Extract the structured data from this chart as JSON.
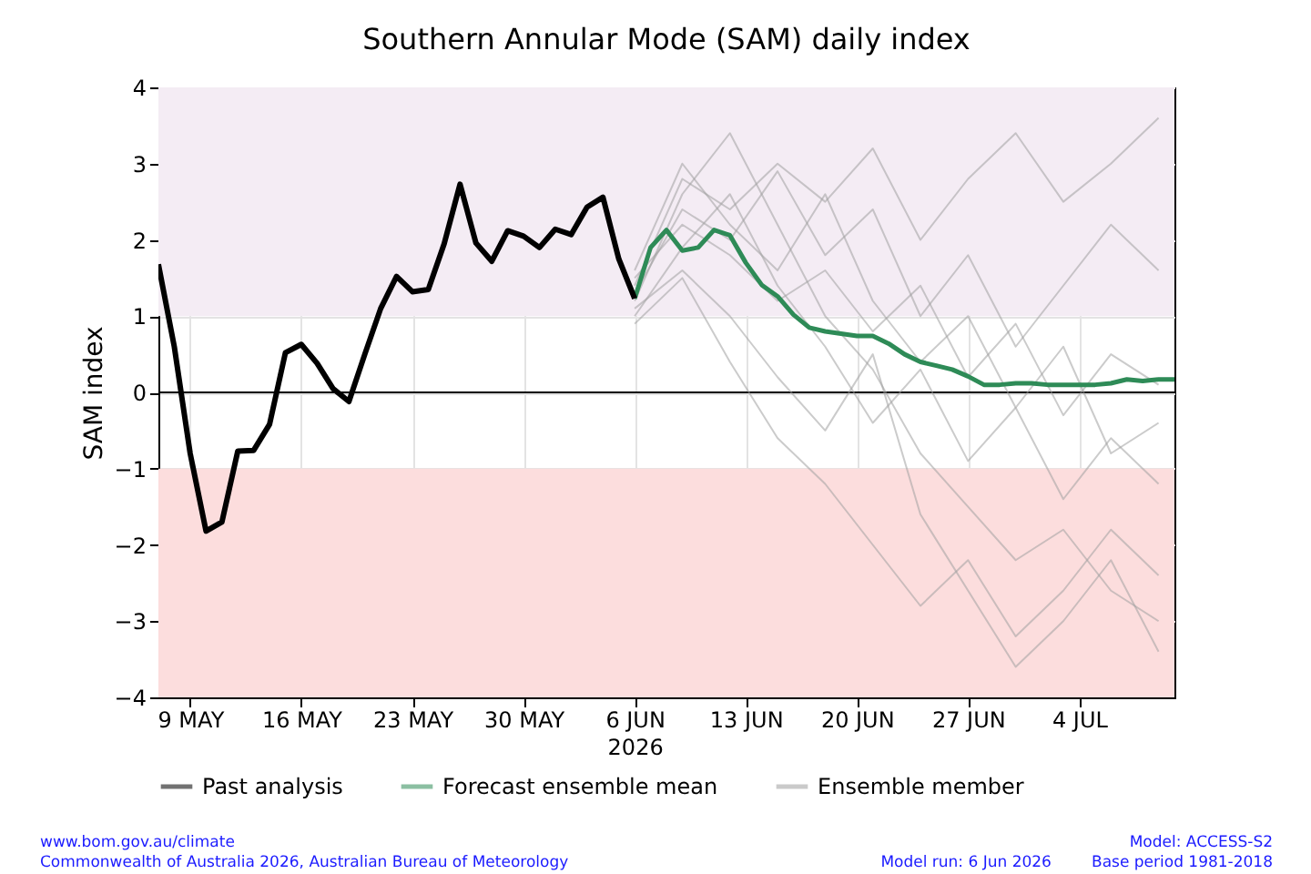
{
  "chart_data": {
    "type": "line",
    "title": "Southern Annular Mode (SAM) daily index",
    "ylabel": "SAM index",
    "xlabel": "2026",
    "xlim": [
      "2026-05-07",
      "2026-07-10"
    ],
    "ylim": [
      -4,
      4
    ],
    "yticks": [
      {
        "value": -4,
        "label": "−4"
      },
      {
        "value": -3,
        "label": "−3"
      },
      {
        "value": -2,
        "label": "−2"
      },
      {
        "value": -1,
        "label": "−1"
      },
      0,
      1,
      2,
      3,
      4
    ],
    "xticks": [
      {
        "value": "2026-05-09",
        "label": "9 MAY"
      },
      {
        "value": "2026-05-16",
        "label": "16 MAY"
      },
      {
        "value": "2026-05-23",
        "label": "23 MAY"
      },
      {
        "value": "2026-05-30",
        "label": "30 MAY"
      },
      {
        "value": "2026-06-06",
        "label": "6 JUN"
      },
      {
        "value": "2026-06-13",
        "label": "13 JUN"
      },
      {
        "value": "2026-06-20",
        "label": "20 JUN"
      },
      {
        "value": "2026-06-27",
        "label": "27 JUN"
      },
      {
        "value": "2026-07-04",
        "label": "4 JUL"
      }
    ],
    "grid": true,
    "legend": "bottom",
    "bands": [
      {
        "axis": "y",
        "from": 1,
        "to": 4,
        "color": "#f4ecf4"
      },
      {
        "axis": "y",
        "from": -4,
        "to": -1,
        "color": "#fcdddd"
      }
    ],
    "ref_lines": [
      {
        "axis": "y",
        "value": 0,
        "color": "#000000"
      }
    ],
    "series": [
      {
        "name": "Ensemble member",
        "color": "#a0a0a0",
        "x": [
          "2026-06-06",
          "2026-06-09",
          "2026-06-12",
          "2026-06-15",
          "2026-06-18",
          "2026-06-21",
          "2026-06-24",
          "2026-06-27",
          "2026-06-30",
          "2026-07-03",
          "2026-07-06",
          "2026-07-09"
        ],
        "values": [
          1.2,
          2.6,
          3.4,
          2.2,
          1.0,
          0.3,
          -0.8,
          -1.5,
          -2.2,
          -1.8,
          -2.6,
          -3.0
        ]
      },
      {
        "color": "#a0a0a0",
        "x": [
          "2026-06-06",
          "2026-06-09",
          "2026-06-12",
          "2026-06-15",
          "2026-06-18",
          "2026-06-21",
          "2026-06-24",
          "2026-06-27",
          "2026-06-30",
          "2026-07-03",
          "2026-07-06",
          "2026-07-09"
        ],
        "values": [
          1.4,
          2.8,
          2.4,
          3.0,
          2.5,
          3.2,
          2.0,
          2.8,
          3.4,
          2.5,
          3.0,
          3.6
        ]
      },
      {
        "color": "#a0a0a0",
        "x": [
          "2026-06-06",
          "2026-06-09",
          "2026-06-12",
          "2026-06-15",
          "2026-06-18",
          "2026-06-21",
          "2026-06-24",
          "2026-06-27",
          "2026-06-30",
          "2026-07-03",
          "2026-07-06",
          "2026-07-09"
        ],
        "values": [
          0.9,
          1.5,
          0.4,
          -0.6,
          -1.2,
          -2.0,
          -2.8,
          -2.2,
          -3.2,
          -2.6,
          -1.8,
          -2.4
        ]
      },
      {
        "color": "#a0a0a0",
        "x": [
          "2026-06-06",
          "2026-06-09",
          "2026-06-12",
          "2026-06-15",
          "2026-06-18",
          "2026-06-21",
          "2026-06-24",
          "2026-06-27",
          "2026-06-30",
          "2026-07-03",
          "2026-07-06",
          "2026-07-09"
        ],
        "values": [
          1.5,
          2.2,
          1.8,
          1.2,
          1.6,
          0.8,
          1.4,
          0.2,
          0.9,
          -0.3,
          0.5,
          0.1
        ]
      },
      {
        "color": "#a0a0a0",
        "x": [
          "2026-06-06",
          "2026-06-09",
          "2026-06-12",
          "2026-06-15",
          "2026-06-18",
          "2026-06-21",
          "2026-06-24",
          "2026-06-27",
          "2026-06-30",
          "2026-07-03",
          "2026-07-06",
          "2026-07-09"
        ],
        "values": [
          1.0,
          1.9,
          2.6,
          1.4,
          0.6,
          -0.4,
          0.3,
          -0.9,
          -0.2,
          -1.4,
          -0.6,
          -1.2
        ]
      },
      {
        "color": "#a0a0a0",
        "x": [
          "2026-06-06",
          "2026-06-09",
          "2026-06-12",
          "2026-06-15",
          "2026-06-18",
          "2026-06-21",
          "2026-06-24",
          "2026-06-27",
          "2026-06-30",
          "2026-07-03",
          "2026-07-06",
          "2026-07-09"
        ],
        "values": [
          1.3,
          2.4,
          2.0,
          2.9,
          1.8,
          2.4,
          1.0,
          1.8,
          0.6,
          1.4,
          2.2,
          1.6
        ]
      },
      {
        "color": "#a0a0a0",
        "x": [
          "2026-06-06",
          "2026-06-09",
          "2026-06-12",
          "2026-06-15",
          "2026-06-18",
          "2026-06-21",
          "2026-06-24",
          "2026-06-27",
          "2026-06-30",
          "2026-07-03",
          "2026-07-06",
          "2026-07-09"
        ],
        "values": [
          1.1,
          1.6,
          1.0,
          0.2,
          -0.5,
          0.5,
          -1.6,
          -2.6,
          -3.6,
          -3.0,
          -2.2,
          -3.4
        ]
      },
      {
        "color": "#a0a0a0",
        "x": [
          "2026-06-06",
          "2026-06-09",
          "2026-06-12",
          "2026-06-15",
          "2026-06-18",
          "2026-06-21",
          "2026-06-24",
          "2026-06-27",
          "2026-06-30",
          "2026-07-03",
          "2026-07-06",
          "2026-07-09"
        ],
        "values": [
          1.6,
          3.0,
          2.2,
          1.6,
          2.6,
          1.2,
          0.4,
          1.0,
          -0.2,
          0.6,
          -0.8,
          -0.4
        ]
      },
      {
        "name": "Forecast ensemble mean",
        "color": "#2e8b57",
        "x": [
          "2026-06-06",
          "2026-06-07",
          "2026-06-08",
          "2026-06-09",
          "2026-06-10",
          "2026-06-11",
          "2026-06-12",
          "2026-06-13",
          "2026-06-14",
          "2026-06-15",
          "2026-06-16",
          "2026-06-17",
          "2026-06-18",
          "2026-06-19",
          "2026-06-20",
          "2026-06-21",
          "2026-06-22",
          "2026-06-23",
          "2026-06-24",
          "2026-06-25",
          "2026-06-26",
          "2026-06-27",
          "2026-06-28",
          "2026-06-29",
          "2026-06-30",
          "2026-07-01",
          "2026-07-02",
          "2026-07-03",
          "2026-07-04",
          "2026-07-05",
          "2026-07-06",
          "2026-07-07",
          "2026-07-08",
          "2026-07-09",
          "2026-07-10"
        ],
        "values": [
          1.23,
          1.9,
          2.13,
          1.86,
          1.9,
          2.13,
          2.06,
          1.7,
          1.41,
          1.26,
          1.02,
          0.85,
          0.8,
          0.77,
          0.74,
          0.74,
          0.64,
          0.5,
          0.4,
          0.35,
          0.3,
          0.21,
          0.1,
          0.1,
          0.12,
          0.12,
          0.1,
          0.1,
          0.1,
          0.1,
          0.12,
          0.17,
          0.15,
          0.17,
          0.17
        ]
      },
      {
        "name": "Past analysis",
        "color": "#000000",
        "x": [
          "2026-05-07",
          "2026-05-08",
          "2026-05-09",
          "2026-05-10",
          "2026-05-11",
          "2026-05-12",
          "2026-05-13",
          "2026-05-14",
          "2026-05-15",
          "2026-05-16",
          "2026-05-17",
          "2026-05-18",
          "2026-05-19",
          "2026-05-20",
          "2026-05-21",
          "2026-05-22",
          "2026-05-23",
          "2026-05-24",
          "2026-05-25",
          "2026-05-26",
          "2026-05-27",
          "2026-05-28",
          "2026-05-29",
          "2026-05-30",
          "2026-05-31",
          "2026-06-01",
          "2026-06-02",
          "2026-06-03",
          "2026-06-04",
          "2026-06-05",
          "2026-06-06"
        ],
        "values": [
          1.68,
          0.6,
          -0.8,
          -1.82,
          -1.7,
          -0.77,
          -0.76,
          -0.42,
          0.52,
          0.63,
          0.38,
          0.05,
          -0.12,
          0.5,
          1.1,
          1.52,
          1.32,
          1.35,
          1.95,
          2.73,
          1.96,
          1.72,
          2.12,
          2.05,
          1.9,
          2.14,
          2.07,
          2.43,
          2.56,
          1.75,
          1.23
        ]
      }
    ],
    "annotations": [
      "www.bom.gov.au/climate",
      "Commonwealth of Australia 2026, Australian Bureau of Meteorology",
      "Model: ACCESS-S2",
      "Model run: 6 Jun 2026",
      "Base period 1981-2018"
    ]
  }
}
